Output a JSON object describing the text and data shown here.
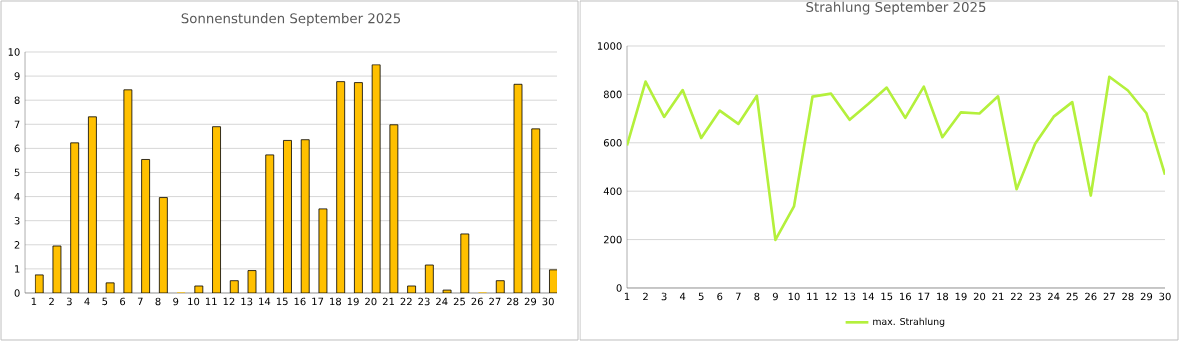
{
  "chart_data": [
    {
      "type": "bar",
      "title": "Sonnenstunden September 2025",
      "categories": [
        "1",
        "2",
        "3",
        "4",
        "5",
        "6",
        "7",
        "8",
        "9",
        "10",
        "11",
        "12",
        "13",
        "14",
        "15",
        "16",
        "17",
        "18",
        "19",
        "20",
        "21",
        "22",
        "23",
        "24",
        "25",
        "26",
        "27",
        "28",
        "29",
        "30"
      ],
      "values": [
        0.75,
        1.95,
        6.23,
        7.31,
        0.42,
        8.43,
        5.54,
        3.96,
        0,
        0.29,
        6.9,
        0.51,
        0.93,
        5.73,
        6.33,
        6.36,
        3.49,
        8.77,
        8.73,
        9.47,
        6.98,
        0.29,
        1.16,
        0.12,
        2.45,
        0,
        0.51,
        8.66,
        6.81,
        0.96
      ],
      "color": "#ffc000",
      "ylim": [
        0,
        10
      ],
      "yticks": [
        0,
        1,
        2,
        3,
        4,
        5,
        6,
        7,
        8,
        9,
        10
      ],
      "grid": "y",
      "legend": false
    },
    {
      "type": "line",
      "title": "Strahlung September 2025",
      "categories": [
        "1",
        "2",
        "3",
        "4",
        "5",
        "6",
        "7",
        "8",
        "9",
        "10",
        "11",
        "12",
        "13",
        "14",
        "15",
        "16",
        "17",
        "18",
        "19",
        "20",
        "21",
        "22",
        "23",
        "24",
        "25",
        "26",
        "27",
        "28",
        "29",
        "30"
      ],
      "series": [
        {
          "name": "max. Strahlung",
          "color": "#b4f03c",
          "values": [
            589,
            853,
            707,
            818,
            620,
            733,
            678,
            794,
            199,
            337,
            791,
            803,
            695,
            760,
            828,
            703,
            832,
            623,
            726,
            721,
            792,
            408,
            596,
            708,
            768,
            382,
            873,
            816,
            722,
            468
          ]
        }
      ],
      "ylim": [
        0,
        1000
      ],
      "yticks": [
        0,
        200,
        400,
        600,
        800,
        1000
      ],
      "grid": "y",
      "legend": "bottom",
      "marker": "none"
    }
  ]
}
